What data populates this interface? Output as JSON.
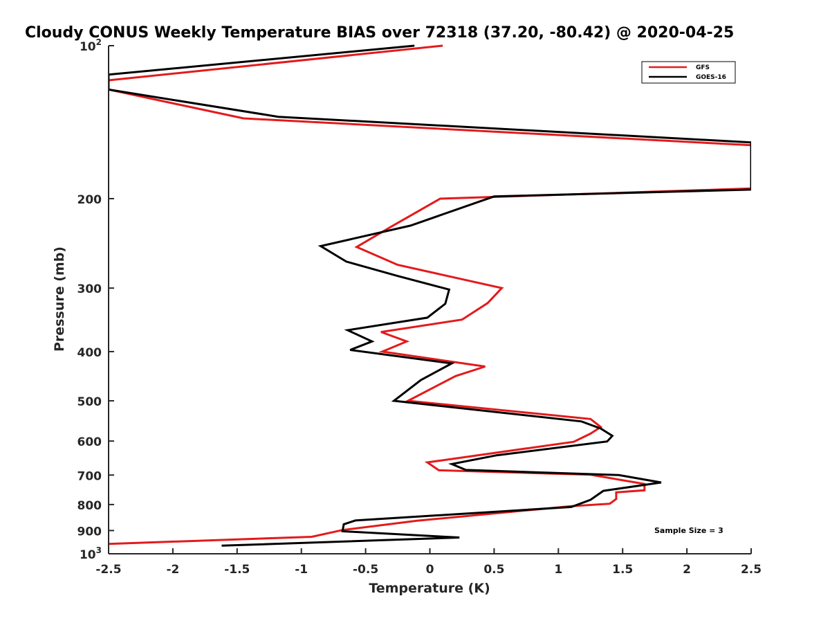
{
  "chart_data": {
    "type": "line",
    "title": "Cloudy CONUS Weekly Temperature BIAS over 72318 (37.20, -80.42) @ 2020-04-25",
    "xlabel": "Temperature (K)",
    "ylabel": "Pressure (mb)",
    "xlim": [
      -2.5,
      2.5
    ],
    "ylim": [
      100,
      1000
    ],
    "yscale": "log",
    "y_reversed": true,
    "grid": false,
    "legend_position": "top-right",
    "x_ticks": [
      "-2.5",
      "-2",
      "-1.5",
      "-1",
      "-0.5",
      "0",
      "0.5",
      "1",
      "1.5",
      "2",
      "2.5"
    ],
    "y_ticks": [
      {
        "value": 100,
        "base": "10",
        "exp": "2"
      },
      {
        "value": 200,
        "label": "200"
      },
      {
        "value": 300,
        "label": "300"
      },
      {
        "value": 400,
        "label": "400"
      },
      {
        "value": 500,
        "label": "500"
      },
      {
        "value": 600,
        "label": "600"
      },
      {
        "value": 700,
        "label": "700"
      },
      {
        "value": 800,
        "label": "800"
      },
      {
        "value": 900,
        "label": "900"
      },
      {
        "value": 1000,
        "base": "10",
        "exp": "3"
      }
    ],
    "annotation": "Sample Size = 3",
    "series": [
      {
        "name": "GFS",
        "color": "#e31a1c",
        "points": [
          [
            0.1,
            100
          ],
          [
            -2.5,
            117
          ],
          [
            -2.5,
            122
          ],
          [
            -1.45,
            139
          ],
          [
            2.5,
            157
          ],
          [
            2.5,
            191
          ],
          [
            0.08,
            200
          ],
          [
            -0.3,
            227
          ],
          [
            -0.57,
            249
          ],
          [
            -0.25,
            270
          ],
          [
            0.56,
            300
          ],
          [
            0.45,
            321
          ],
          [
            0.25,
            346
          ],
          [
            -0.38,
            366
          ],
          [
            -0.18,
            382
          ],
          [
            -0.37,
            400
          ],
          [
            0.43,
            428
          ],
          [
            0.2,
            447
          ],
          [
            -0.17,
            500
          ],
          [
            1.25,
            543
          ],
          [
            1.33,
            563
          ],
          [
            1.25,
            580
          ],
          [
            1.12,
            602
          ],
          [
            -0.02,
            661
          ],
          [
            0.07,
            685
          ],
          [
            1.25,
            699
          ],
          [
            1.67,
            729
          ],
          [
            1.67,
            750
          ],
          [
            1.45,
            757
          ],
          [
            1.45,
            780
          ],
          [
            1.4,
            797
          ],
          [
            1.1,
            806
          ],
          [
            -0.1,
            861
          ],
          [
            -0.68,
            898
          ],
          [
            -0.92,
            926
          ],
          [
            -2.5,
            956
          ]
        ]
      },
      {
        "name": "GOES-16",
        "color": "#000000",
        "points": [
          [
            -0.12,
            100
          ],
          [
            -2.5,
            114
          ],
          [
            -2.5,
            122
          ],
          [
            -1.18,
            138
          ],
          [
            2.5,
            155
          ],
          [
            2.5,
            192
          ],
          [
            0.5,
            198
          ],
          [
            -0.15,
            226
          ],
          [
            -0.85,
            248
          ],
          [
            -0.65,
            266
          ],
          [
            -0.25,
            284
          ],
          [
            0.15,
            302
          ],
          [
            0.12,
            322
          ],
          [
            -0.02,
            343
          ],
          [
            -0.64,
            363
          ],
          [
            -0.45,
            382
          ],
          [
            -0.62,
            397
          ],
          [
            0.17,
            422
          ],
          [
            -0.07,
            455
          ],
          [
            -0.28,
            500
          ],
          [
            1.18,
            549
          ],
          [
            1.33,
            567
          ],
          [
            1.42,
            586
          ],
          [
            1.38,
            601
          ],
          [
            0.52,
            640
          ],
          [
            0.17,
            666
          ],
          [
            0.28,
            684
          ],
          [
            1.47,
            700
          ],
          [
            1.8,
            724
          ],
          [
            1.35,
            752
          ],
          [
            1.25,
            783
          ],
          [
            1.1,
            809
          ],
          [
            -0.58,
            860
          ],
          [
            -0.67,
            875
          ],
          [
            -0.68,
            903
          ],
          [
            0.23,
            929
          ],
          [
            -1.62,
            964
          ]
        ]
      }
    ]
  }
}
